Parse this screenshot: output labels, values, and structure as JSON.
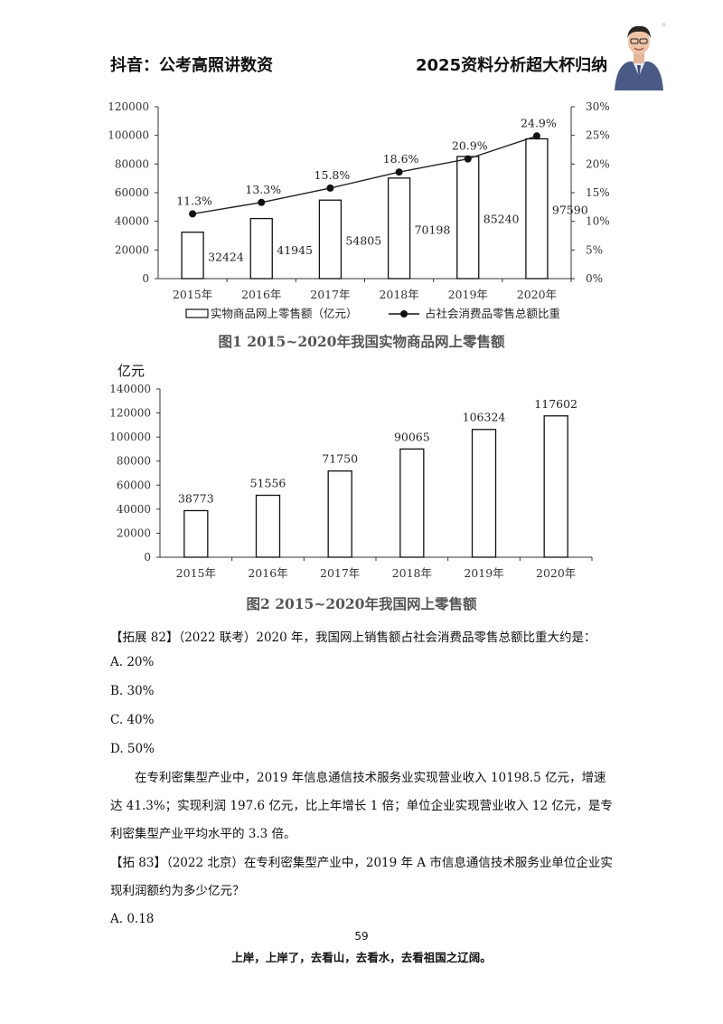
{
  "header": {
    "left": "抖音：公考高照讲数资",
    "right": "2025资料分析超大杯归纳"
  },
  "chart_data": [
    {
      "type": "bar",
      "categories": [
        "2015年",
        "2016年",
        "2017年",
        "2018年",
        "2019年",
        "2020年"
      ],
      "series": [
        {
          "name": "实物商品网上零售额（亿元）",
          "values": [
            32424,
            41945,
            54805,
            70198,
            85240,
            97590
          ],
          "axis": "left"
        },
        {
          "name": "占社会消费品零售总额比重",
          "values": [
            11.3,
            13.3,
            15.8,
            18.6,
            20.9,
            24.9
          ],
          "axis": "right",
          "kind": "line"
        }
      ],
      "point_labels": [
        "11.3%",
        "13.3%",
        "15.8%",
        "18.6%",
        "20.9%",
        "24.9%"
      ],
      "ylim": [
        0,
        120000
      ],
      "yticks": [
        "0",
        "20000",
        "40000",
        "60000",
        "80000",
        "100000",
        "120000"
      ],
      "y2lim": [
        0,
        30
      ],
      "y2ticks": [
        "0%",
        "5%",
        "10%",
        "15%",
        "20%",
        "25%",
        "30%"
      ],
      "legend": "bottom",
      "title": "图1  2015~2020年我国实物商品网上零售额"
    },
    {
      "type": "bar",
      "categories": [
        "2015年",
        "2016年",
        "2017年",
        "2018年",
        "2019年",
        "2020年"
      ],
      "values": [
        38773,
        51556,
        71750,
        90065,
        106324,
        117602
      ],
      "ylim": [
        0,
        140000
      ],
      "yticks": [
        "0",
        "20000",
        "40000",
        "60000",
        "80000",
        "100000",
        "120000",
        "140000"
      ],
      "ylabel": "亿元",
      "title": "图2  2015~2020年我国网上零售额"
    }
  ],
  "q82": {
    "stem": "【拓展 82】（2022 联考）2020 年，我国网上销售额占社会消费品零售总额比重大约是：",
    "options": [
      "A. 20%",
      "B. 30%",
      "C. 40%",
      "D. 50%"
    ]
  },
  "material": {
    "paragraph": "在专利密集型产业中，2019 年信息通信技术服务业实现营业收入 10198.5 亿元，增速达 41.3%；实现利润 197.6 亿元，比上年增长 1 倍；单位企业实现营业收入 12 亿元，是专利密集型产业平均水平的 3.3 倍。"
  },
  "q83": {
    "stem": "【拓 83】（2022 北京）在专利密集型产业中，2019 年 A 市信息通信技术服务业单位企业实现利润额约为多少亿元？",
    "options": [
      "A. 0.18"
    ]
  },
  "page_number": "59",
  "footer": "上岸，上岸了，去看山，去看水，去看祖国之辽阔。"
}
